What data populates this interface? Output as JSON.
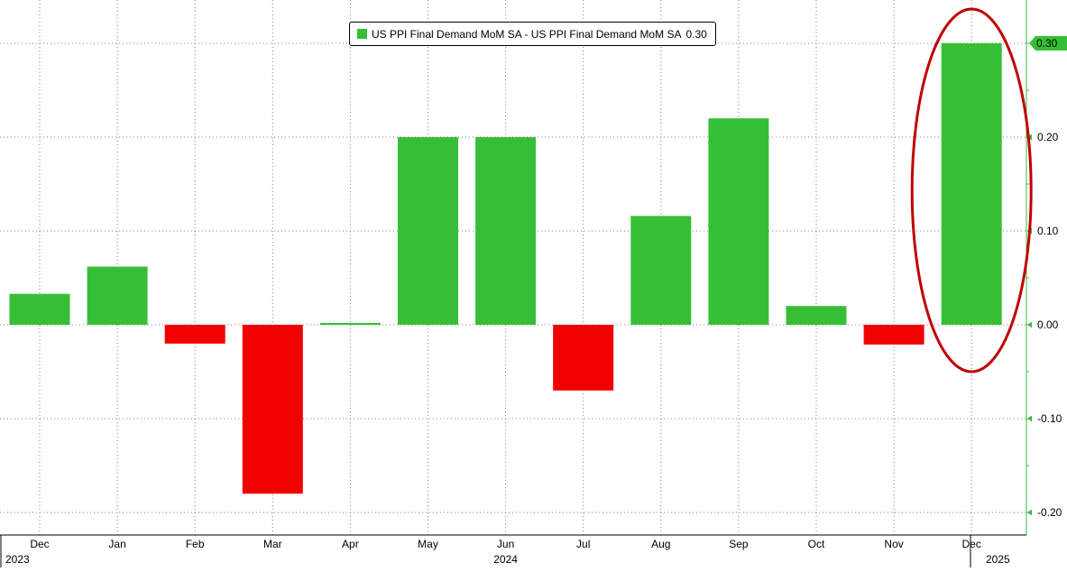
{
  "chart_data": {
    "type": "bar",
    "categories": [
      "Dec",
      "Jan",
      "Feb",
      "Mar",
      "Apr",
      "May",
      "Jun",
      "Jul",
      "Aug",
      "Sep",
      "Oct",
      "Nov",
      "Dec"
    ],
    "year_labels": [
      {
        "label": "2023",
        "category_index": 0
      },
      {
        "label": "2024",
        "category_index": 6
      },
      {
        "label": "2025",
        "category_index": 12
      }
    ],
    "series": [
      {
        "name": "US PPI Final Demand MoM SA - US PPI Final Demand MoM SA",
        "values": [
          0.033,
          0.062,
          -0.02,
          -0.18,
          0.002,
          0.2,
          0.2,
          -0.07,
          0.116,
          0.22,
          0.02,
          -0.021,
          0.3
        ]
      }
    ],
    "last_value_label": "0.30",
    "y_ticks": [
      "0.30",
      "0.20",
      "0.10",
      "0.00",
      "-0.10",
      "-0.20"
    ],
    "y_tick_values": [
      0.3,
      0.2,
      0.1,
      0.0,
      -0.1,
      -0.2
    ],
    "ylim": [
      -0.22,
      0.34
    ],
    "xlabel": "",
    "ylabel": "",
    "title": "",
    "grid": true,
    "legend_position": "top-center",
    "y_axis_position": "right",
    "highlight": {
      "shape": "ellipse",
      "category_index": 12,
      "color": "#c00000"
    },
    "colors": {
      "positive": "#36bf36",
      "negative": "#f20000",
      "axis": "#3cb83c",
      "grid": "#7f7f7f"
    }
  }
}
